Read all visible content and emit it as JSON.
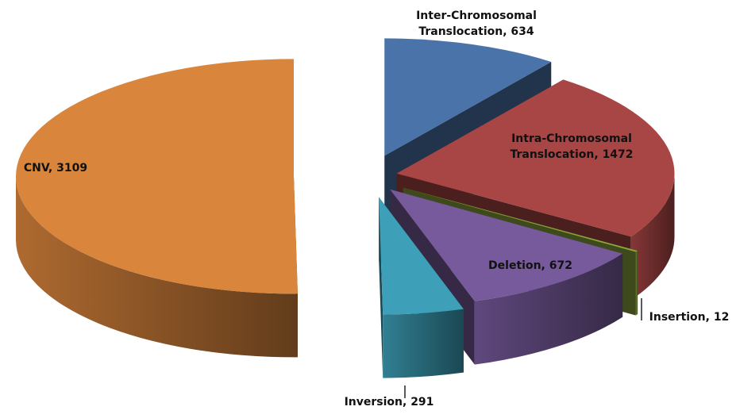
{
  "chart_data": {
    "type": "pie",
    "categories": [
      "Inter-Chromosomal Translocation",
      "Intra-Chromosomal Translocation",
      "Insertion",
      "Deletion",
      "Inversion",
      "CNV"
    ],
    "values": [
      634,
      1472,
      12,
      672,
      291,
      3109
    ],
    "value_labels": [
      "Inter-Chromosomal Translocation, 634",
      "Intra-Chromosomal Translocation, 1472",
      "Insertion, 12",
      "Deletion, 672",
      "Inversion, 291",
      "CNV, 3109"
    ],
    "colors": [
      "#4a73a9",
      "#a84545",
      "#8aa53c",
      "#775a9c",
      "#3d9fb8",
      "#d9853c"
    ]
  }
}
